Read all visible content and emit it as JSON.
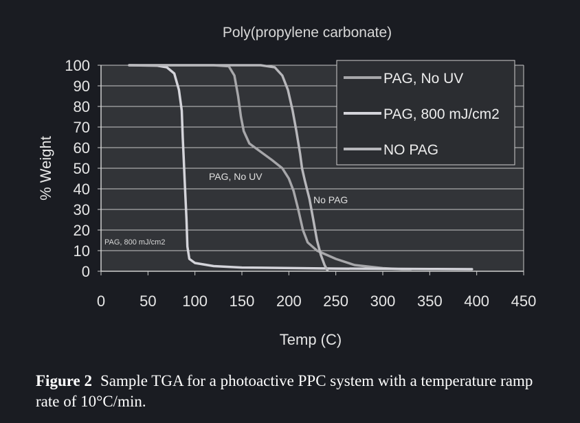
{
  "chart_data": {
    "type": "line",
    "title": "Poly(propylene carbonate)",
    "xlabel": "Temp (C)",
    "ylabel": "% Weight",
    "xlim": [
      0,
      450
    ],
    "ylim": [
      0,
      100
    ],
    "xticks": [
      "0",
      "50",
      "100",
      "150",
      "200",
      "250",
      "300",
      "350",
      "400",
      "450"
    ],
    "yticks": [
      "0",
      "10",
      "20",
      "30",
      "40",
      "50",
      "60",
      "70",
      "80",
      "90",
      "100"
    ],
    "grid": true,
    "legend_position": "top-right",
    "series": [
      {
        "name": "PAG, No UV",
        "color": "#a7a7aa",
        "points": [
          [
            30,
            100
          ],
          [
            120,
            100
          ],
          [
            136,
            99.5
          ],
          [
            142,
            95
          ],
          [
            146,
            85
          ],
          [
            149,
            75
          ],
          [
            152,
            68
          ],
          [
            158,
            62
          ],
          [
            170,
            58
          ],
          [
            182,
            54
          ],
          [
            193,
            50
          ],
          [
            200,
            45
          ],
          [
            205,
            39
          ],
          [
            210,
            30
          ],
          [
            215,
            20
          ],
          [
            220,
            14
          ],
          [
            230,
            10
          ],
          [
            250,
            6
          ],
          [
            270,
            3
          ],
          [
            300,
            1.5
          ],
          [
            320,
            1
          ],
          [
            330,
            1
          ]
        ]
      },
      {
        "name": "PAG, 800 mJ/cm2",
        "color": "#d4d4da",
        "points": [
          [
            30,
            100
          ],
          [
            60,
            99.8
          ],
          [
            70,
            99
          ],
          [
            78,
            96
          ],
          [
            83,
            88
          ],
          [
            86,
            78
          ],
          [
            87,
            65
          ],
          [
            88,
            55
          ],
          [
            89,
            45
          ],
          [
            90,
            35
          ],
          [
            91,
            25
          ],
          [
            92,
            12
          ],
          [
            94,
            6
          ],
          [
            100,
            4
          ],
          [
            120,
            2.5
          ],
          [
            150,
            1.8
          ],
          [
            250,
            1.3
          ],
          [
            350,
            1.1
          ],
          [
            395,
            1
          ]
        ]
      },
      {
        "name": "NO PAG",
        "color": "#b7b7bb",
        "points": [
          [
            30,
            100
          ],
          [
            170,
            100
          ],
          [
            185,
            99
          ],
          [
            193,
            95
          ],
          [
            199,
            88
          ],
          [
            204,
            78
          ],
          [
            208,
            68
          ],
          [
            212,
            57
          ],
          [
            214,
            50
          ],
          [
            217,
            44
          ],
          [
            222,
            35
          ],
          [
            226,
            25
          ],
          [
            230,
            15
          ],
          [
            234,
            8
          ],
          [
            238,
            3
          ],
          [
            241,
            0.5
          ]
        ]
      }
    ],
    "annotations": [
      "PAG, No UV",
      "No PAG",
      "PAG, 800 mJ/cm2"
    ]
  },
  "caption": {
    "label": "Figure 2",
    "text": "Sample TGA for a photoactive PPC system with a temperature ramp rate of 10°C/min."
  }
}
